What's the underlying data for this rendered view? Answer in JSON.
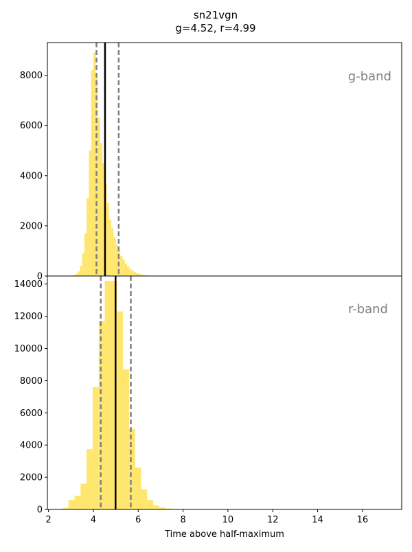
{
  "figure": {
    "title_line1": "sn21vgn",
    "title_line2": "g=4.52, r=4.99",
    "xlabel": "Time above half-maximum"
  },
  "colors": {
    "bar": "#ffe04a",
    "median": "#000000",
    "quantile": "#808080",
    "band_label": "#808080"
  },
  "chart_data": [
    {
      "type": "bar",
      "name": "g-band",
      "band_label": "g-band",
      "xlim": [
        1.95,
        17.75
      ],
      "ylim": [
        0,
        9300
      ],
      "yticks": [
        0,
        2000,
        4000,
        6000,
        8000
      ],
      "xticks": [
        2,
        4,
        6,
        8,
        10,
        12,
        14,
        16
      ],
      "bin_width": 0.1,
      "bin_start": 3.0,
      "values": [
        15,
        40,
        90,
        180,
        400,
        900,
        1700,
        3100,
        5000,
        8200,
        8900,
        7900,
        6300,
        5300,
        4500,
        3700,
        2900,
        2250,
        1900,
        1550,
        1250,
        1000,
        800,
        650,
        500,
        380,
        280,
        210,
        160,
        120,
        90,
        65,
        45,
        30,
        20,
        14,
        8,
        5,
        3
      ],
      "median": 4.52,
      "lower": 4.14,
      "upper": 5.13
    },
    {
      "type": "bar",
      "name": "r-band",
      "band_label": "r-band",
      "xlim": [
        1.95,
        17.75
      ],
      "ylim": [
        0,
        14500
      ],
      "yticks": [
        0,
        2000,
        4000,
        6000,
        8000,
        10000,
        12000,
        14000
      ],
      "xticks": [
        2,
        4,
        6,
        8,
        10,
        12,
        14,
        16
      ],
      "bin_width": 0.27,
      "bin_start": 2.62,
      "values": [
        100,
        600,
        850,
        1600,
        3750,
        7600,
        11700,
        14200,
        14200,
        12300,
        8700,
        5000,
        2600,
        1250,
        600,
        250,
        120,
        60,
        25,
        12,
        5
      ],
      "median": 4.99,
      "lower": 4.33,
      "upper": 5.67
    }
  ]
}
